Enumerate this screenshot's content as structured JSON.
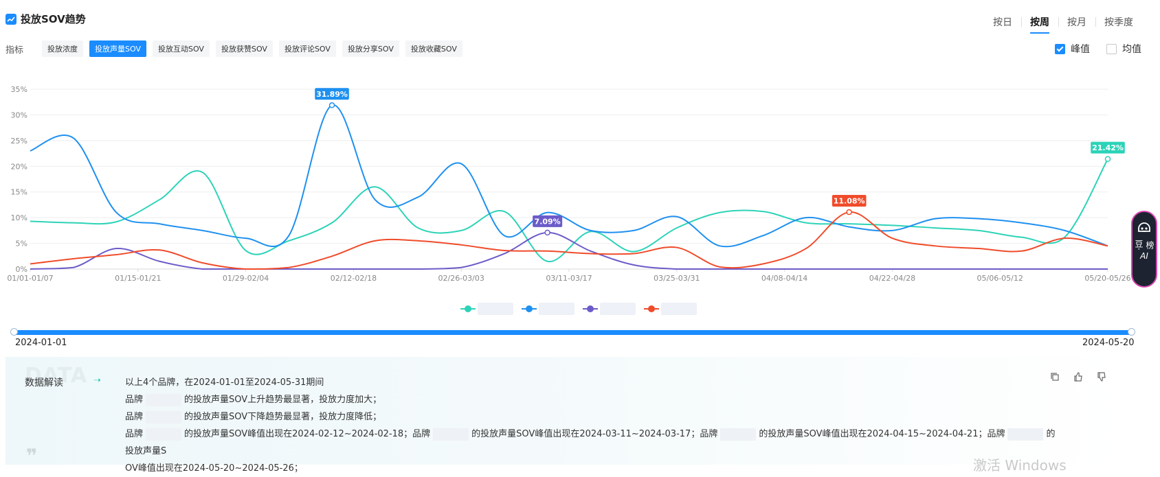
{
  "header": {
    "title": "投放SOV趋势"
  },
  "period_tabs": [
    {
      "label": "按日",
      "active": false
    },
    {
      "label": "按周",
      "active": true
    },
    {
      "label": "按月",
      "active": false
    },
    {
      "label": "按季度",
      "active": false
    }
  ],
  "metric_label": "指标",
  "metric_tabs": [
    {
      "label": "投放浓度",
      "active": false
    },
    {
      "label": "投放声量SOV",
      "active": true
    },
    {
      "label": "投放互动SOV",
      "active": false
    },
    {
      "label": "投放获赞SOV",
      "active": false
    },
    {
      "label": "投放评论SOV",
      "active": false
    },
    {
      "label": "投放分享SOV",
      "active": false
    },
    {
      "label": "投放收藏SOV",
      "active": false
    }
  ],
  "toggles": {
    "peak": {
      "label": "峰值",
      "checked": true
    },
    "mean": {
      "label": "均值",
      "checked": false
    }
  },
  "colors": {
    "accent": "#1a8cff",
    "teal": "#2cd3b8",
    "blue": "#1e90f0",
    "purple": "#6b5bc9",
    "red": "#f04b2a"
  },
  "chart_data": {
    "type": "line",
    "ylim": [
      0,
      35
    ],
    "y_ticks": [
      "0%",
      "5%",
      "10%",
      "15%",
      "20%",
      "25%",
      "30%",
      "35%"
    ],
    "x_labels": [
      "01/01-01/07",
      "01/15-01/21",
      "01/29-02/04",
      "02/12-02/18",
      "02/26-03/03",
      "03/11-03/17",
      "03/25-03/31",
      "04/08-04/14",
      "04/22-04/28",
      "05/06-05/12",
      "05/20-05/26"
    ],
    "grid": true,
    "legend": "bottom",
    "series": [
      {
        "color": "#2cd3b8",
        "values": [
          9.3,
          9.0,
          9.2,
          13.5,
          18.8,
          3.6,
          5.5,
          9.0,
          16.0,
          8.0,
          7.5,
          11.2,
          1.5,
          7.3,
          3.4,
          8.0,
          11.0,
          11.2,
          9.0,
          8.8,
          8.5,
          8.0,
          7.5,
          6.2,
          6.2,
          21.42
        ],
        "peak_index": 25,
        "peak_label": "21.42%"
      },
      {
        "color": "#1e90f0",
        "values": [
          23.0,
          25.5,
          11.0,
          8.8,
          7.5,
          6.0,
          6.5,
          31.89,
          13.5,
          14.0,
          20.5,
          6.5,
          11.0,
          7.5,
          7.5,
          10.2,
          4.5,
          6.5,
          10.0,
          8.2,
          7.5,
          9.8,
          9.8,
          9.0,
          7.5,
          4.5
        ],
        "peak_index": 7,
        "peak_label": "31.89%"
      },
      {
        "color": "#6b5bc9",
        "values": [
          0,
          0.3,
          4.0,
          1.5,
          0,
          0,
          0,
          0,
          0,
          0,
          0.3,
          3.0,
          7.09,
          3.5,
          0.8,
          0,
          0,
          0,
          0,
          0,
          0,
          0,
          0,
          0,
          0,
          0
        ],
        "peak_index": 12,
        "peak_label": "7.09%"
      },
      {
        "color": "#f04b2a",
        "values": [
          1.0,
          2.0,
          2.8,
          3.7,
          1.2,
          0,
          0.3,
          2.5,
          5.5,
          5.5,
          4.7,
          3.6,
          3.5,
          3.0,
          3.0,
          4.2,
          0.4,
          1.0,
          4.0,
          11.08,
          6.0,
          4.5,
          4.0,
          3.5,
          6.0,
          4.5
        ],
        "peak_index": 19,
        "peak_label": "11.08%"
      }
    ]
  },
  "slider": {
    "start_date": "2024-01-01",
    "end_date": "2024-05-20"
  },
  "interpretation": {
    "watermark": "DATA",
    "title": "数据解读",
    "line1": "以上4个品牌，在2024-01-01至2024-05-31期间",
    "line2_a": "品牌",
    "line2_b": "的投放声量SOV上升趋势最显著，投放力度加大；",
    "line3_a": "品牌",
    "line3_b": "的投放声量SOV下降趋势最显著，投放力度降低；",
    "line4_a": "品牌",
    "line4_b": "的投放声量SOV峰值出现在2024-02-12~2024-02-18；品牌",
    "line4_c": "的投放声量SOV峰值出现在2024-03-11~2024-03-17；品牌",
    "line4_d": "的投放声量SOV峰值出现在2024-04-15~2024-04-21；品牌",
    "line4_e": "的投放声量S",
    "line5": "OV峰值出现在2024-05-20~2024-05-26；"
  },
  "ai_button": {
    "text": "榜豆·",
    "label": "AI"
  },
  "activate_hint": "激活 Windows"
}
